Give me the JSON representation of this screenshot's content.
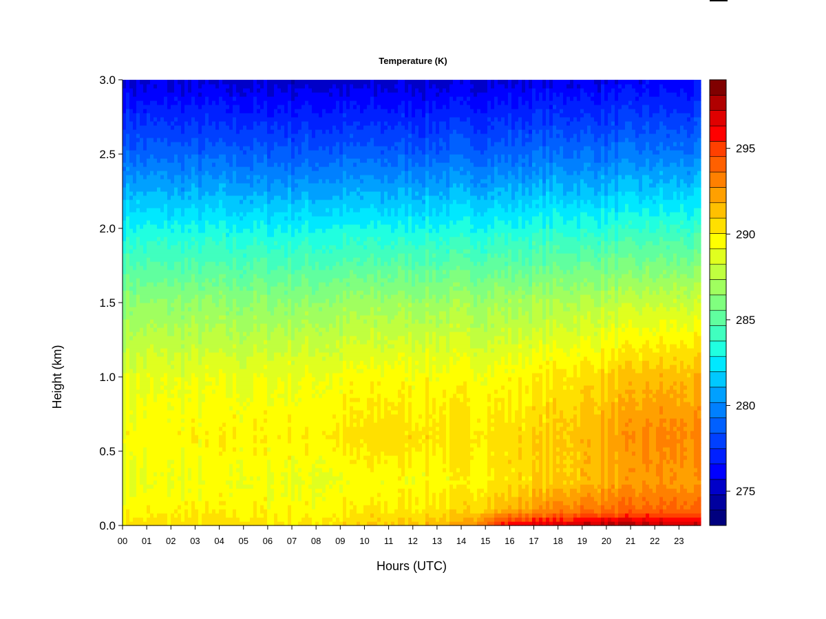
{
  "chart_data": {
    "type": "heatmap",
    "title": "Temperature (K)",
    "xlabel": "Hours (UTC)",
    "ylabel": "Height (km)",
    "x_ticks": [
      "00",
      "01",
      "02",
      "03",
      "04",
      "05",
      "06",
      "07",
      "08",
      "09",
      "10",
      "11",
      "12",
      "13",
      "14",
      "15",
      "16",
      "17",
      "18",
      "19",
      "20",
      "21",
      "22",
      "23"
    ],
    "xlim": [
      0,
      23.9
    ],
    "y_ticks": [
      "0.0",
      "0.5",
      "1.0",
      "1.5",
      "2.0",
      "2.5",
      "3.0"
    ],
    "ylim": [
      0,
      3.0
    ],
    "colorbar": {
      "min": 273,
      "max": 299,
      "step": 1,
      "tick_labels": [
        "275",
        "280",
        "285",
        "290",
        "295"
      ],
      "tick_values": [
        275,
        280,
        285,
        290,
        295
      ],
      "colors": [
        "#00007f",
        "#00009f",
        "#0000c8",
        "#0000ff",
        "#0020ff",
        "#0040ff",
        "#0060ff",
        "#0080ff",
        "#00a0ff",
        "#00c8ff",
        "#00e8ff",
        "#20ffe0",
        "#40ffbf",
        "#60ff9f",
        "#80ff7f",
        "#a0ff5f",
        "#c0ff3f",
        "#e0ff1f",
        "#ffff00",
        "#ffe000",
        "#ffc000",
        "#ffa000",
        "#ff8000",
        "#ff6000",
        "#ff4000",
        "#ff0000",
        "#e00000",
        "#b00000",
        "#800000"
      ]
    },
    "profile_heights_km": [
      0.0,
      0.1,
      0.3,
      0.6,
      1.0,
      1.5,
      2.0,
      2.5,
      3.0
    ],
    "temperature_profiles_K": [
      {
        "hour": 0,
        "values": [
          290.5,
          289.8,
          288.8,
          289.6,
          288.8,
          286.5,
          283.0,
          279.0,
          275.5
        ]
      },
      {
        "hour": 4,
        "values": [
          290.5,
          289.8,
          289.3,
          289.8,
          288.9,
          286.4,
          282.9,
          278.8,
          275.3
        ]
      },
      {
        "hour": 8,
        "values": [
          290.2,
          289.6,
          289.0,
          289.9,
          289.2,
          286.5,
          282.9,
          278.7,
          275.2
        ]
      },
      {
        "hour": 11,
        "values": [
          291.2,
          290.2,
          289.5,
          290.6,
          289.6,
          286.9,
          283.0,
          278.8,
          275.3
        ]
      },
      {
        "hour": 14,
        "values": [
          292.0,
          290.5,
          289.6,
          290.3,
          289.5,
          286.9,
          283.1,
          278.9,
          275.4
        ]
      },
      {
        "hour": 16,
        "values": [
          296.5,
          292.0,
          290.4,
          290.5,
          289.6,
          287.0,
          283.2,
          279.0,
          275.6
        ]
      },
      {
        "hour": 18,
        "values": [
          297.0,
          293.2,
          291.0,
          291.0,
          290.2,
          287.3,
          283.4,
          279.3,
          275.8
        ]
      },
      {
        "hour": 20,
        "values": [
          297.8,
          293.8,
          291.8,
          292.0,
          290.8,
          287.6,
          283.5,
          279.3,
          275.8
        ]
      },
      {
        "hour": 22,
        "values": [
          297.5,
          294.0,
          292.5,
          293.0,
          291.5,
          288.0,
          283.8,
          279.5,
          276.0
        ]
      },
      {
        "hour": 24,
        "values": [
          297.0,
          293.8,
          292.3,
          292.8,
          291.5,
          288.1,
          283.8,
          279.5,
          276.0
        ]
      }
    ]
  }
}
